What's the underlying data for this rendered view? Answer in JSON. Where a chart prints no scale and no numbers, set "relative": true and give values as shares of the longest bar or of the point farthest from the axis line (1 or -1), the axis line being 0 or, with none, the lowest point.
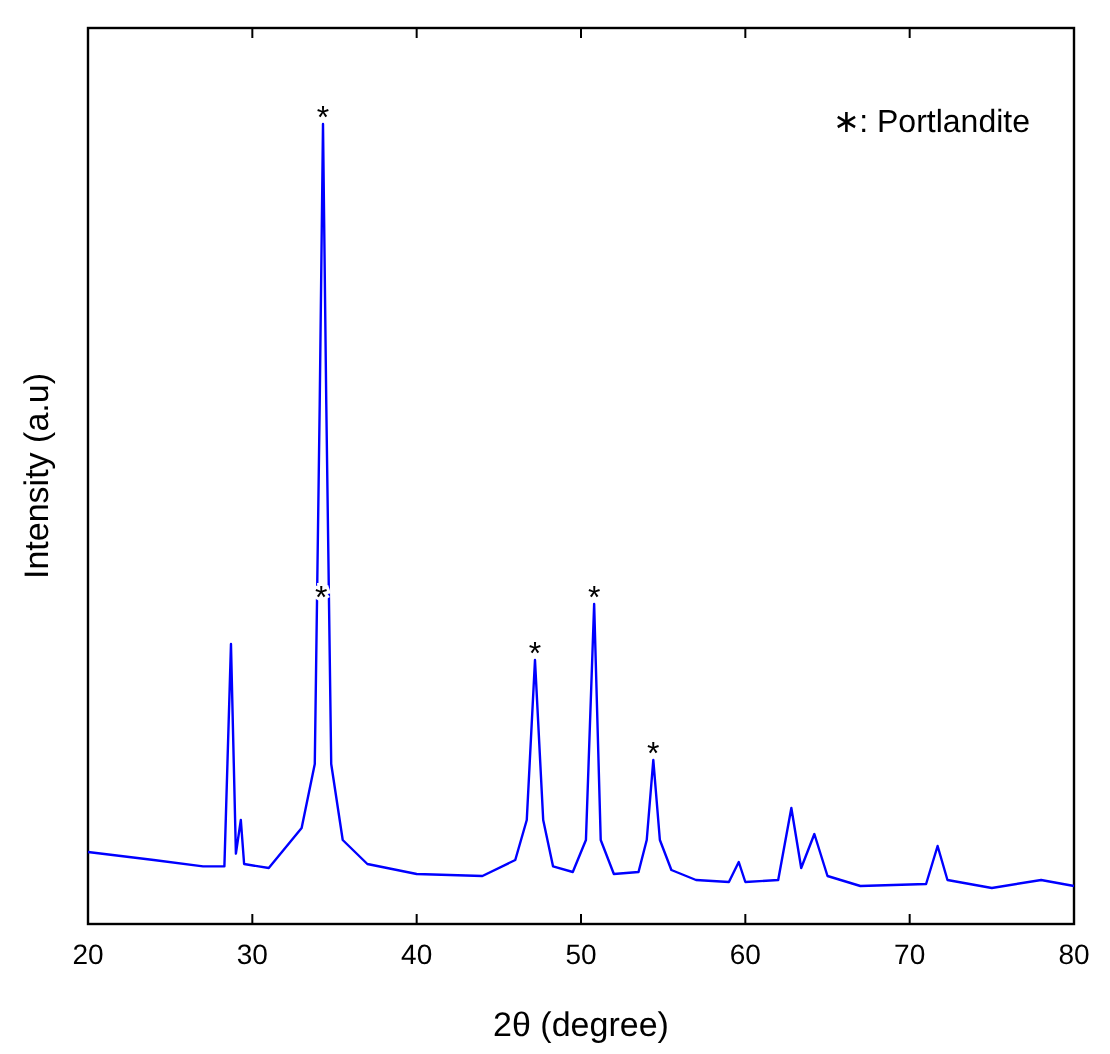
{
  "chart_data": {
    "type": "line",
    "relative": true,
    "xlabel": "2θ (degree)",
    "ylabel": "Intensity (a.u)",
    "xlim": [
      20,
      80
    ],
    "xticks": [
      20,
      30,
      40,
      50,
      60,
      70,
      80
    ],
    "x": [
      20,
      24,
      27,
      28.3,
      28.7,
      29.0,
      29.3,
      29.5,
      31,
      33,
      33.8,
      34.1,
      34.3,
      34.5,
      34.8,
      35.5,
      37,
      40,
      44,
      46,
      46.7,
      47.2,
      47.7,
      48.3,
      49.5,
      50.3,
      50.8,
      51.2,
      52,
      53.5,
      54.0,
      54.4,
      54.8,
      55.5,
      57,
      59,
      59.6,
      60,
      62,
      62.8,
      63.4,
      64.2,
      65,
      67,
      71,
      71.7,
      72.3,
      75,
      78,
      80
    ],
    "series": [
      {
        "color": "#0000ff",
        "values": [
          0.09,
          0.08,
          0.072,
          0.072,
          0.35,
          0.088,
          0.13,
          0.075,
          0.07,
          0.12,
          0.2,
          0.65,
          1,
          0.65,
          0.2,
          0.105,
          0.075,
          0.0625,
          0.06,
          0.08,
          0.13,
          0.33,
          0.13,
          0.072,
          0.065,
          0.105,
          0.4,
          0.105,
          0.0625,
          0.065,
          0.105,
          0.205,
          0.105,
          0.0675,
          0.055,
          0.0525,
          0.0775,
          0.0525,
          0.055,
          0.145,
          0.07,
          0.1125,
          0.06,
          0.0475,
          0.05,
          0.0975,
          0.055,
          0.045,
          0.055,
          0.0475
        ]
      }
    ],
    "annotations": [
      {
        "text": "*",
        "x": 34.3,
        "y": 1
      },
      {
        "text": "*",
        "x": 34.2,
        "y": 0.4
      },
      {
        "text": "*",
        "x": 47.2,
        "y": 0.33
      },
      {
        "text": "*",
        "x": 50.8,
        "y": 0.4
      },
      {
        "text": "*",
        "x": 54.4,
        "y": 0.205
      },
      "∗: Portlandite"
    ],
    "grid": false
  }
}
